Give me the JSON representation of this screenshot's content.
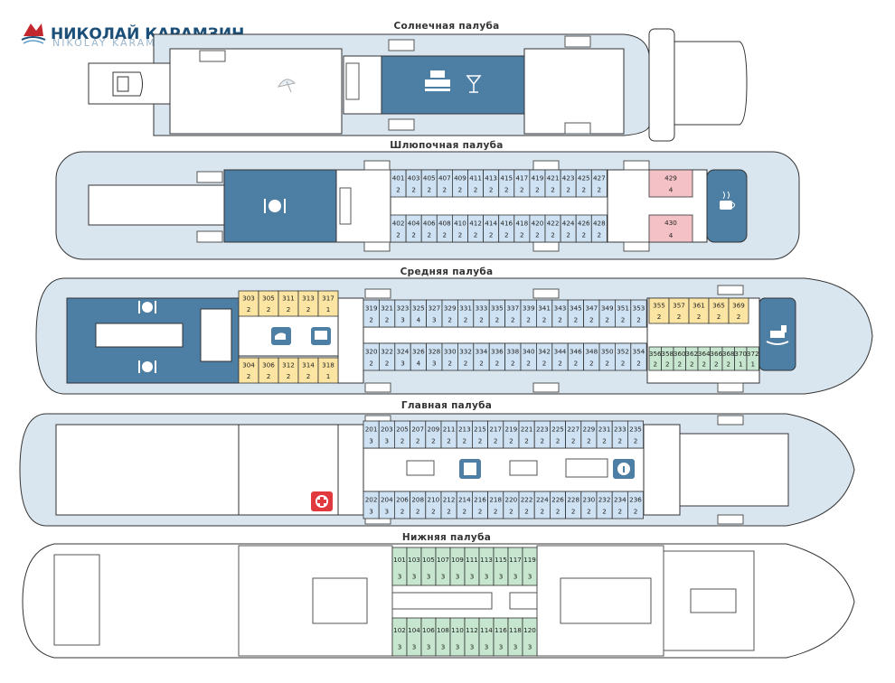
{
  "logo": {
    "title": "НИКОЛАЙ КАРАМЗИН",
    "subtitle": "NIKOLAY KARAMZIN"
  },
  "colors": {
    "blue": "#cfe2f3",
    "yellow": "#fce5a3",
    "pink": "#f4c2c6",
    "green": "#c7e6cf",
    "hull": "#d9e6ef",
    "dark": "#4d7ea3",
    "white": "#ffffff"
  },
  "decks": {
    "sun": {
      "title": "Солнечная палуба"
    },
    "boat": {
      "title": "Шлюпочная палуба",
      "top": [
        [
          "401",
          "2"
        ],
        [
          "403",
          "2"
        ],
        [
          "405",
          "2"
        ],
        [
          "407",
          "2"
        ],
        [
          "409",
          "2"
        ],
        [
          "411",
          "2"
        ],
        [
          "413",
          "2"
        ],
        [
          "415",
          "2"
        ],
        [
          "417",
          "2"
        ],
        [
          "419",
          "2"
        ],
        [
          "421",
          "2"
        ],
        [
          "423",
          "2"
        ],
        [
          "425",
          "2"
        ],
        [
          "427",
          "2"
        ]
      ],
      "bottom": [
        [
          "402",
          "2"
        ],
        [
          "404",
          "2"
        ],
        [
          "406",
          "2"
        ],
        [
          "408",
          "2"
        ],
        [
          "410",
          "2"
        ],
        [
          "412",
          "2"
        ],
        [
          "414",
          "2"
        ],
        [
          "416",
          "2"
        ],
        [
          "418",
          "2"
        ],
        [
          "420",
          "2"
        ],
        [
          "422",
          "2"
        ],
        [
          "424",
          "2"
        ],
        [
          "426",
          "2"
        ],
        [
          "428",
          "2"
        ]
      ],
      "suites": [
        [
          "429",
          "4"
        ],
        [
          "430",
          "4"
        ]
      ]
    },
    "middle": {
      "title": "Средняя палуба",
      "aft_top": [
        [
          "303",
          "2"
        ],
        [
          "305",
          "2"
        ],
        [
          "311",
          "2"
        ],
        [
          "313",
          "2"
        ],
        [
          "317",
          "1"
        ]
      ],
      "aft_bottom": [
        [
          "304",
          "2"
        ],
        [
          "306",
          "2"
        ],
        [
          "312",
          "2"
        ],
        [
          "314",
          "2"
        ],
        [
          "318",
          "1"
        ]
      ],
      "top": [
        [
          "319",
          "2"
        ],
        [
          "321",
          "2"
        ],
        [
          "323",
          "3"
        ],
        [
          "325",
          "4"
        ],
        [
          "327",
          "3"
        ],
        [
          "329",
          "2"
        ],
        [
          "331",
          "2"
        ],
        [
          "333",
          "2"
        ],
        [
          "335",
          "2"
        ],
        [
          "337",
          "2"
        ],
        [
          "339",
          "2"
        ],
        [
          "341",
          "2"
        ],
        [
          "343",
          "2"
        ],
        [
          "345",
          "2"
        ],
        [
          "347",
          "2"
        ],
        [
          "349",
          "2"
        ],
        [
          "351",
          "2"
        ],
        [
          "353",
          "2"
        ]
      ],
      "bottom": [
        [
          "320",
          "2"
        ],
        [
          "322",
          "2"
        ],
        [
          "324",
          "3"
        ],
        [
          "326",
          "4"
        ],
        [
          "328",
          "3"
        ],
        [
          "330",
          "2"
        ],
        [
          "332",
          "2"
        ],
        [
          "334",
          "2"
        ],
        [
          "336",
          "2"
        ],
        [
          "338",
          "2"
        ],
        [
          "340",
          "2"
        ],
        [
          "342",
          "2"
        ],
        [
          "344",
          "2"
        ],
        [
          "346",
          "2"
        ],
        [
          "348",
          "2"
        ],
        [
          "350",
          "2"
        ],
        [
          "352",
          "2"
        ],
        [
          "354",
          "2"
        ]
      ],
      "fwd_top": [
        [
          "355",
          "2"
        ],
        [
          "357",
          "2"
        ],
        [
          "361",
          "2"
        ],
        [
          "365",
          "2"
        ],
        [
          "369",
          "2"
        ]
      ],
      "fwd_bottom": [
        [
          "356",
          "2"
        ],
        [
          "358",
          "2"
        ],
        [
          "360",
          "2"
        ],
        [
          "362",
          "2"
        ],
        [
          "364",
          "2"
        ],
        [
          "366",
          "2"
        ],
        [
          "368",
          "2"
        ],
        [
          "370",
          "1"
        ],
        [
          "372",
          "1"
        ]
      ]
    },
    "main": {
      "title": "Главная палуба",
      "top": [
        [
          "201",
          "3"
        ],
        [
          "203",
          "3"
        ],
        [
          "205",
          "2"
        ],
        [
          "207",
          "2"
        ],
        [
          "209",
          "2"
        ],
        [
          "211",
          "2"
        ],
        [
          "213",
          "2"
        ],
        [
          "215",
          "2"
        ],
        [
          "217",
          "2"
        ],
        [
          "219",
          "2"
        ],
        [
          "221",
          "2"
        ],
        [
          "223",
          "2"
        ],
        [
          "225",
          "2"
        ],
        [
          "227",
          "2"
        ],
        [
          "229",
          "2"
        ],
        [
          "231",
          "2"
        ],
        [
          "233",
          "2"
        ],
        [
          "235",
          "2"
        ]
      ],
      "bottom": [
        [
          "202",
          "3"
        ],
        [
          "204",
          "3"
        ],
        [
          "206",
          "2"
        ],
        [
          "208",
          "2"
        ],
        [
          "210",
          "2"
        ],
        [
          "212",
          "2"
        ],
        [
          "214",
          "2"
        ],
        [
          "216",
          "2"
        ],
        [
          "218",
          "2"
        ],
        [
          "220",
          "2"
        ],
        [
          "222",
          "2"
        ],
        [
          "224",
          "2"
        ],
        [
          "226",
          "2"
        ],
        [
          "228",
          "2"
        ],
        [
          "230",
          "2"
        ],
        [
          "232",
          "2"
        ],
        [
          "234",
          "2"
        ],
        [
          "236",
          "2"
        ]
      ]
    },
    "lower": {
      "title": "Нижняя палуба",
      "top": [
        [
          "101",
          "3"
        ],
        [
          "103",
          "3"
        ],
        [
          "105",
          "3"
        ],
        [
          "107",
          "3"
        ],
        [
          "109",
          "3"
        ],
        [
          "111",
          "3"
        ],
        [
          "113",
          "3"
        ],
        [
          "115",
          "3"
        ],
        [
          "117",
          "3"
        ],
        [
          "119",
          "3"
        ]
      ],
      "bottom": [
        [
          "102",
          "3"
        ],
        [
          "104",
          "3"
        ],
        [
          "106",
          "3"
        ],
        [
          "108",
          "3"
        ],
        [
          "110",
          "3"
        ],
        [
          "112",
          "3"
        ],
        [
          "114",
          "3"
        ],
        [
          "116",
          "3"
        ],
        [
          "118",
          "3"
        ],
        [
          "120",
          "3"
        ]
      ]
    }
  },
  "icons": [
    "logo-icon",
    "umbrella-icon",
    "bar-icon",
    "cocktail-icon",
    "restaurant-icon",
    "cafe-icon",
    "ironing-icon",
    "tv-icon",
    "rocking-horse-icon",
    "library-icon",
    "info-icon",
    "medical-icon"
  ]
}
